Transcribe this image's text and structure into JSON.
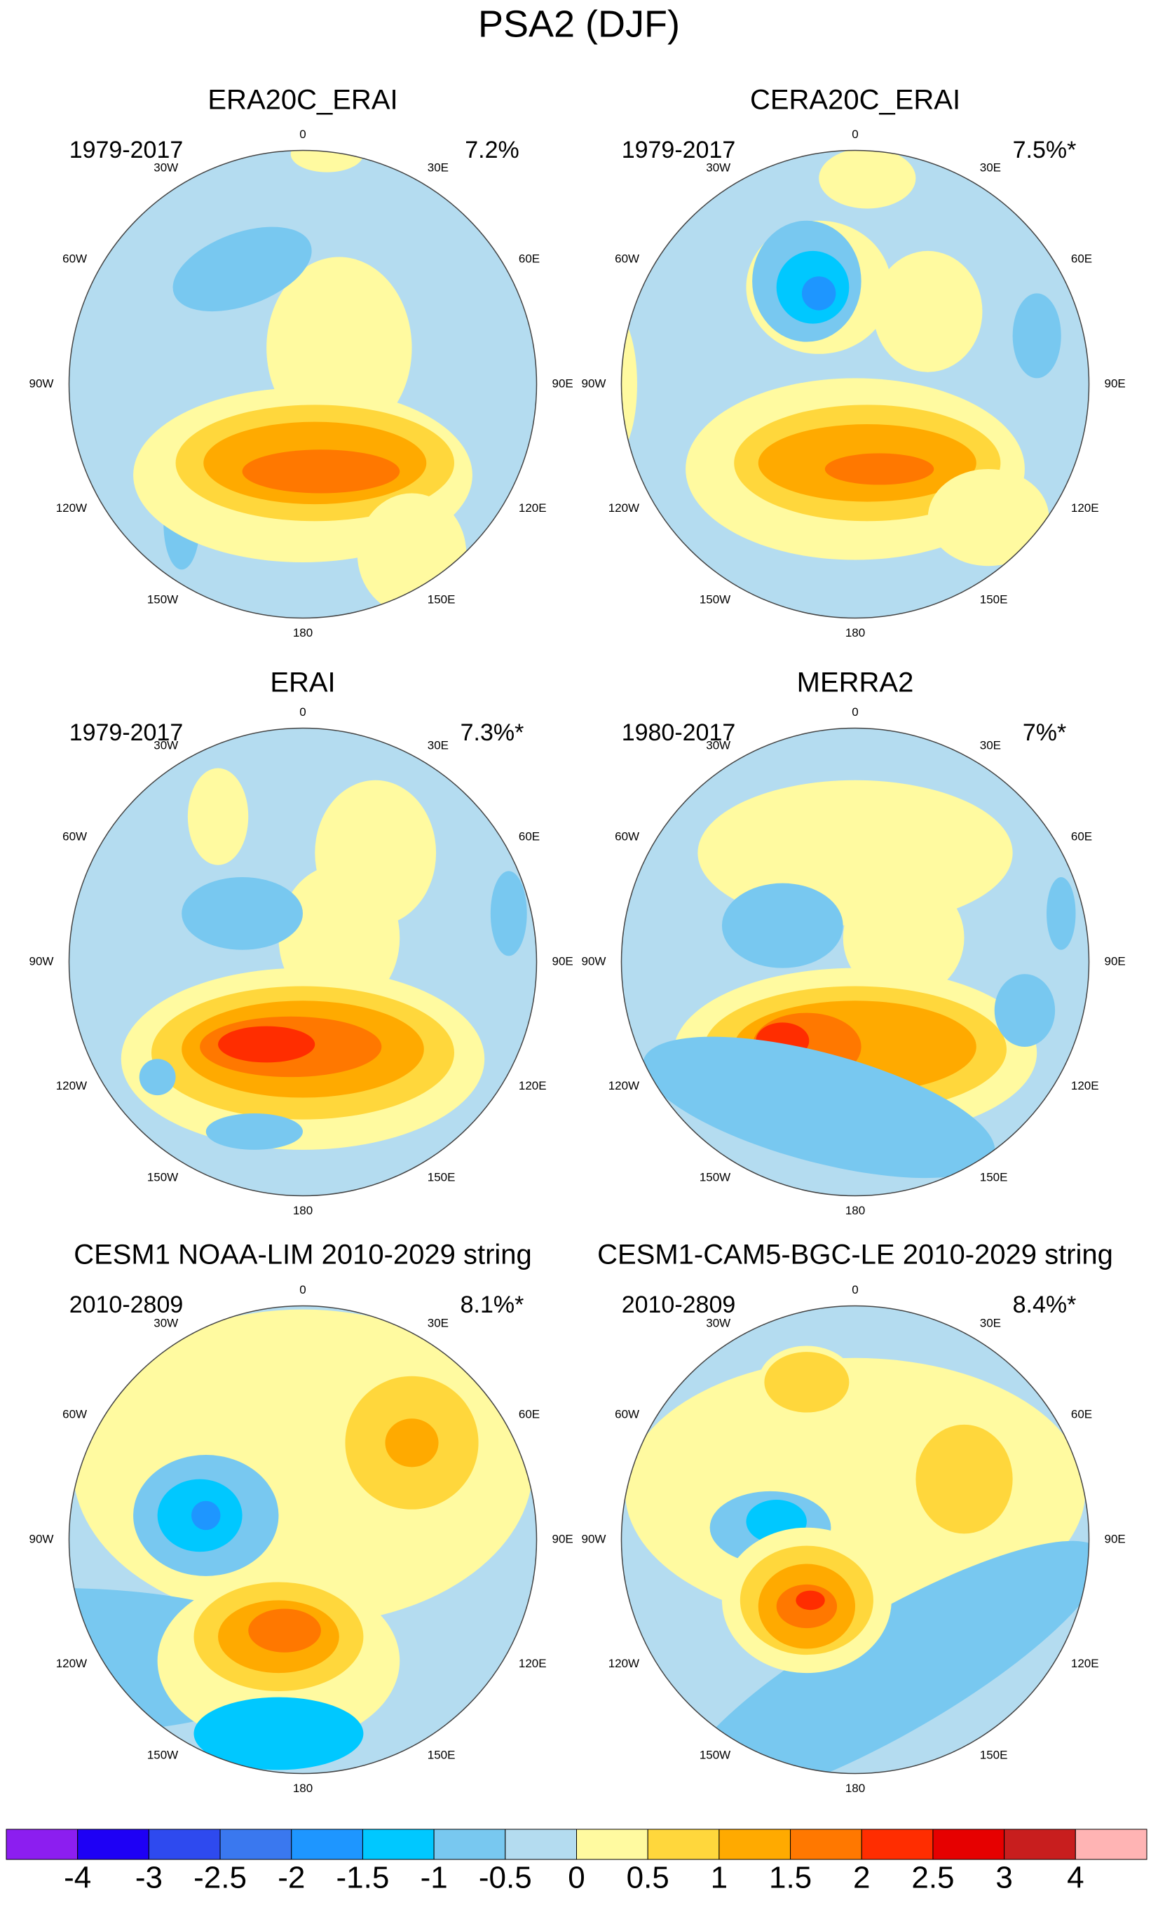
{
  "title": "PSA2 (DJF)",
  "lon_labels": [
    "0",
    "30E",
    "60E",
    "90E",
    "120E",
    "150E",
    "180",
    "150W",
    "120W",
    "90W",
    "60W",
    "30W"
  ],
  "panels": [
    {
      "title": "ERA20C_ERAI",
      "period": "1979-2017",
      "variance": "7.2%"
    },
    {
      "title": "CERA20C_ERAI",
      "period": "1979-2017",
      "variance": "7.5%*"
    },
    {
      "title": "ERAI",
      "period": "1979-2017",
      "variance": "7.3%*"
    },
    {
      "title": "MERRA2",
      "period": "1980-2017",
      "variance": "7%*"
    },
    {
      "title": "CESM1 NOAA-LIM 2010-2029 string",
      "period": "2010-2809",
      "variance": "8.1%*"
    },
    {
      "title": "CESM1-CAM5-BGC-LE 2010-2029 string",
      "period": "2010-2809",
      "variance": "8.4%*"
    }
  ],
  "colorbar": {
    "colors": [
      "#8c1ef0",
      "#1e00f5",
      "#2e4aef",
      "#3a78ef",
      "#1e96ff",
      "#00c8ff",
      "#78c8f0",
      "#b4dcf0",
      "#fffaa0",
      "#ffd73c",
      "#ffaa00",
      "#ff7800",
      "#ff2d00",
      "#e60000",
      "#c81e1e",
      "#ffb4b4"
    ],
    "labels": [
      -4,
      -3,
      -2.5,
      -2,
      -1.5,
      -1,
      -0.5,
      0,
      0.5,
      1,
      1.5,
      2,
      2.5,
      3,
      4
    ]
  }
}
